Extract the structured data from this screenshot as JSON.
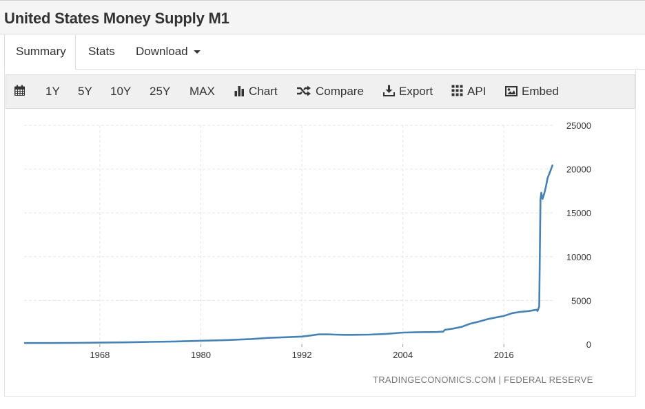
{
  "page": {
    "title": "United States Money Supply M1"
  },
  "tabs": [
    {
      "label": "Summary",
      "active": true
    },
    {
      "label": "Stats"
    },
    {
      "label": "Download"
    }
  ],
  "toolbar": {
    "calendar_icon": "calendar-icon",
    "ranges": [
      "1Y",
      "5Y",
      "10Y",
      "25Y",
      "MAX"
    ],
    "chart_label": "Chart",
    "compare_label": "Compare",
    "export_label": "Export",
    "api_label": "API",
    "embed_label": "Embed"
  },
  "colors": {
    "line": "#4682b4",
    "grid": "#e6e6e6",
    "toolbar_bg": "#f0f0f0"
  },
  "source": "TRADINGECONOMICS.COM  |  FEDERAL RESERVE",
  "chart_data": {
    "type": "line",
    "title": "",
    "xlabel": "",
    "ylabel": "",
    "x_ticks": [
      "1968",
      "1980",
      "1992",
      "2004",
      "2016"
    ],
    "y_ticks": [
      "0",
      "5000",
      "10000",
      "15000",
      "20000",
      "25000"
    ],
    "ylim": [
      0,
      25000
    ],
    "xlim": [
      1959.0,
      2021.8
    ],
    "grid": true,
    "y_axis_side": "right",
    "series": [
      {
        "x": [
          1959.0,
          1962,
          1965,
          1968,
          1971,
          1974,
          1977,
          1980,
          1983,
          1986,
          1988,
          1990,
          1992,
          1993,
          1994,
          1995,
          1996,
          1997,
          1998,
          2000,
          2002,
          2004,
          2006,
          2008,
          2008.8,
          2009,
          2010,
          2011,
          2012,
          2013,
          2014,
          2015,
          2016,
          2017,
          2018,
          2019,
          2019.9,
          2020.0,
          2020.1,
          2020.2,
          2020.35,
          2020.45,
          2020.6,
          2020.8,
          2021.0,
          2021.2,
          2021.5,
          2021.8
        ],
        "y": [
          140,
          145,
          160,
          185,
          220,
          275,
          320,
          400,
          480,
          600,
          730,
          800,
          880,
          1000,
          1130,
          1140,
          1100,
          1080,
          1080,
          1100,
          1190,
          1340,
          1380,
          1400,
          1450,
          1650,
          1790,
          2000,
          2350,
          2580,
          2850,
          3050,
          3230,
          3550,
          3700,
          3800,
          3950,
          3800,
          4050,
          4300,
          16500,
          17300,
          16600,
          17200,
          18000,
          19000,
          19700,
          20500
        ]
      }
    ]
  }
}
